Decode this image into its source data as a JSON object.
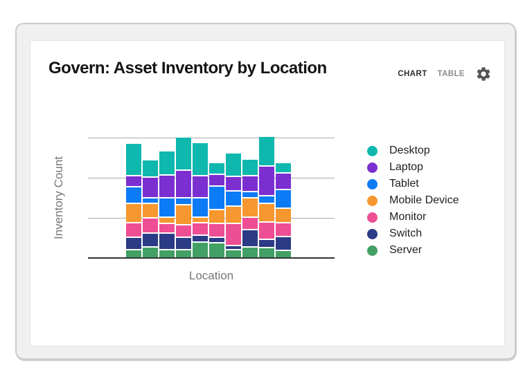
{
  "widget": {
    "title": "Govern: Asset Inventory by Location",
    "tabs": [
      {
        "label": "CHART",
        "active": true
      },
      {
        "label": "TABLE",
        "active": false
      }
    ],
    "settings_icon": "gear-icon",
    "colors": {
      "active_tab": "#2b2b2b",
      "inactive_tab": "#8d8d8d",
      "icon": "#555555",
      "axis": "#333333",
      "gridline": "#a9a9a9",
      "axis_label_text": "#767676"
    }
  },
  "chart_data": {
    "type": "bar",
    "stacked": true,
    "title": "",
    "xlabel": "Location",
    "ylabel": "Inventory Count",
    "x_tick_labels_visible": false,
    "y_tick_labels_visible": false,
    "num_bars": 10,
    "ylim": [
      0,
      150
    ],
    "gridline_interval": 50,
    "grid": true,
    "legend_position": "right",
    "legend_order_top_to_bottom": [
      "Desktop",
      "Laptop",
      "Tablet",
      "Mobile Device",
      "Monitor",
      "Switch",
      "Server"
    ],
    "stack_order_top_to_bottom": [
      "Desktop",
      "Laptop",
      "Tablet",
      "Mobile Device",
      "Monitor",
      "Switch",
      "Server"
    ],
    "series": [
      {
        "name": "Desktop",
        "color": "#0eb8ae",
        "values": [
          40,
          22,
          30,
          41,
          41,
          14,
          29,
          21,
          37,
          13
        ]
      },
      {
        "name": "Laptop",
        "color": "#7b2fd0",
        "values": [
          14,
          26,
          29,
          35,
          28,
          15,
          18,
          20,
          37,
          20
        ]
      },
      {
        "name": "Tablet",
        "color": "#0d7bf5",
        "values": [
          21,
          7,
          24,
          8,
          24,
          29,
          19,
          8,
          10,
          24
        ]
      },
      {
        "name": "Mobile Device",
        "color": "#f6972f",
        "values": [
          24,
          18,
          8,
          25,
          7,
          18,
          22,
          24,
          23,
          18
        ]
      },
      {
        "name": "Monitor",
        "color": "#ee4e94",
        "values": [
          18,
          19,
          12,
          16,
          15,
          17,
          27,
          15,
          21,
          17
        ]
      },
      {
        "name": "Switch",
        "color": "#2b3b85",
        "values": [
          15,
          17,
          20,
          15,
          9,
          7,
          5,
          22,
          11,
          17
        ]
      },
      {
        "name": "Server",
        "color": "#42a065",
        "values": [
          9,
          12,
          9,
          9,
          18,
          17,
          9,
          12,
          11,
          8
        ]
      }
    ]
  }
}
